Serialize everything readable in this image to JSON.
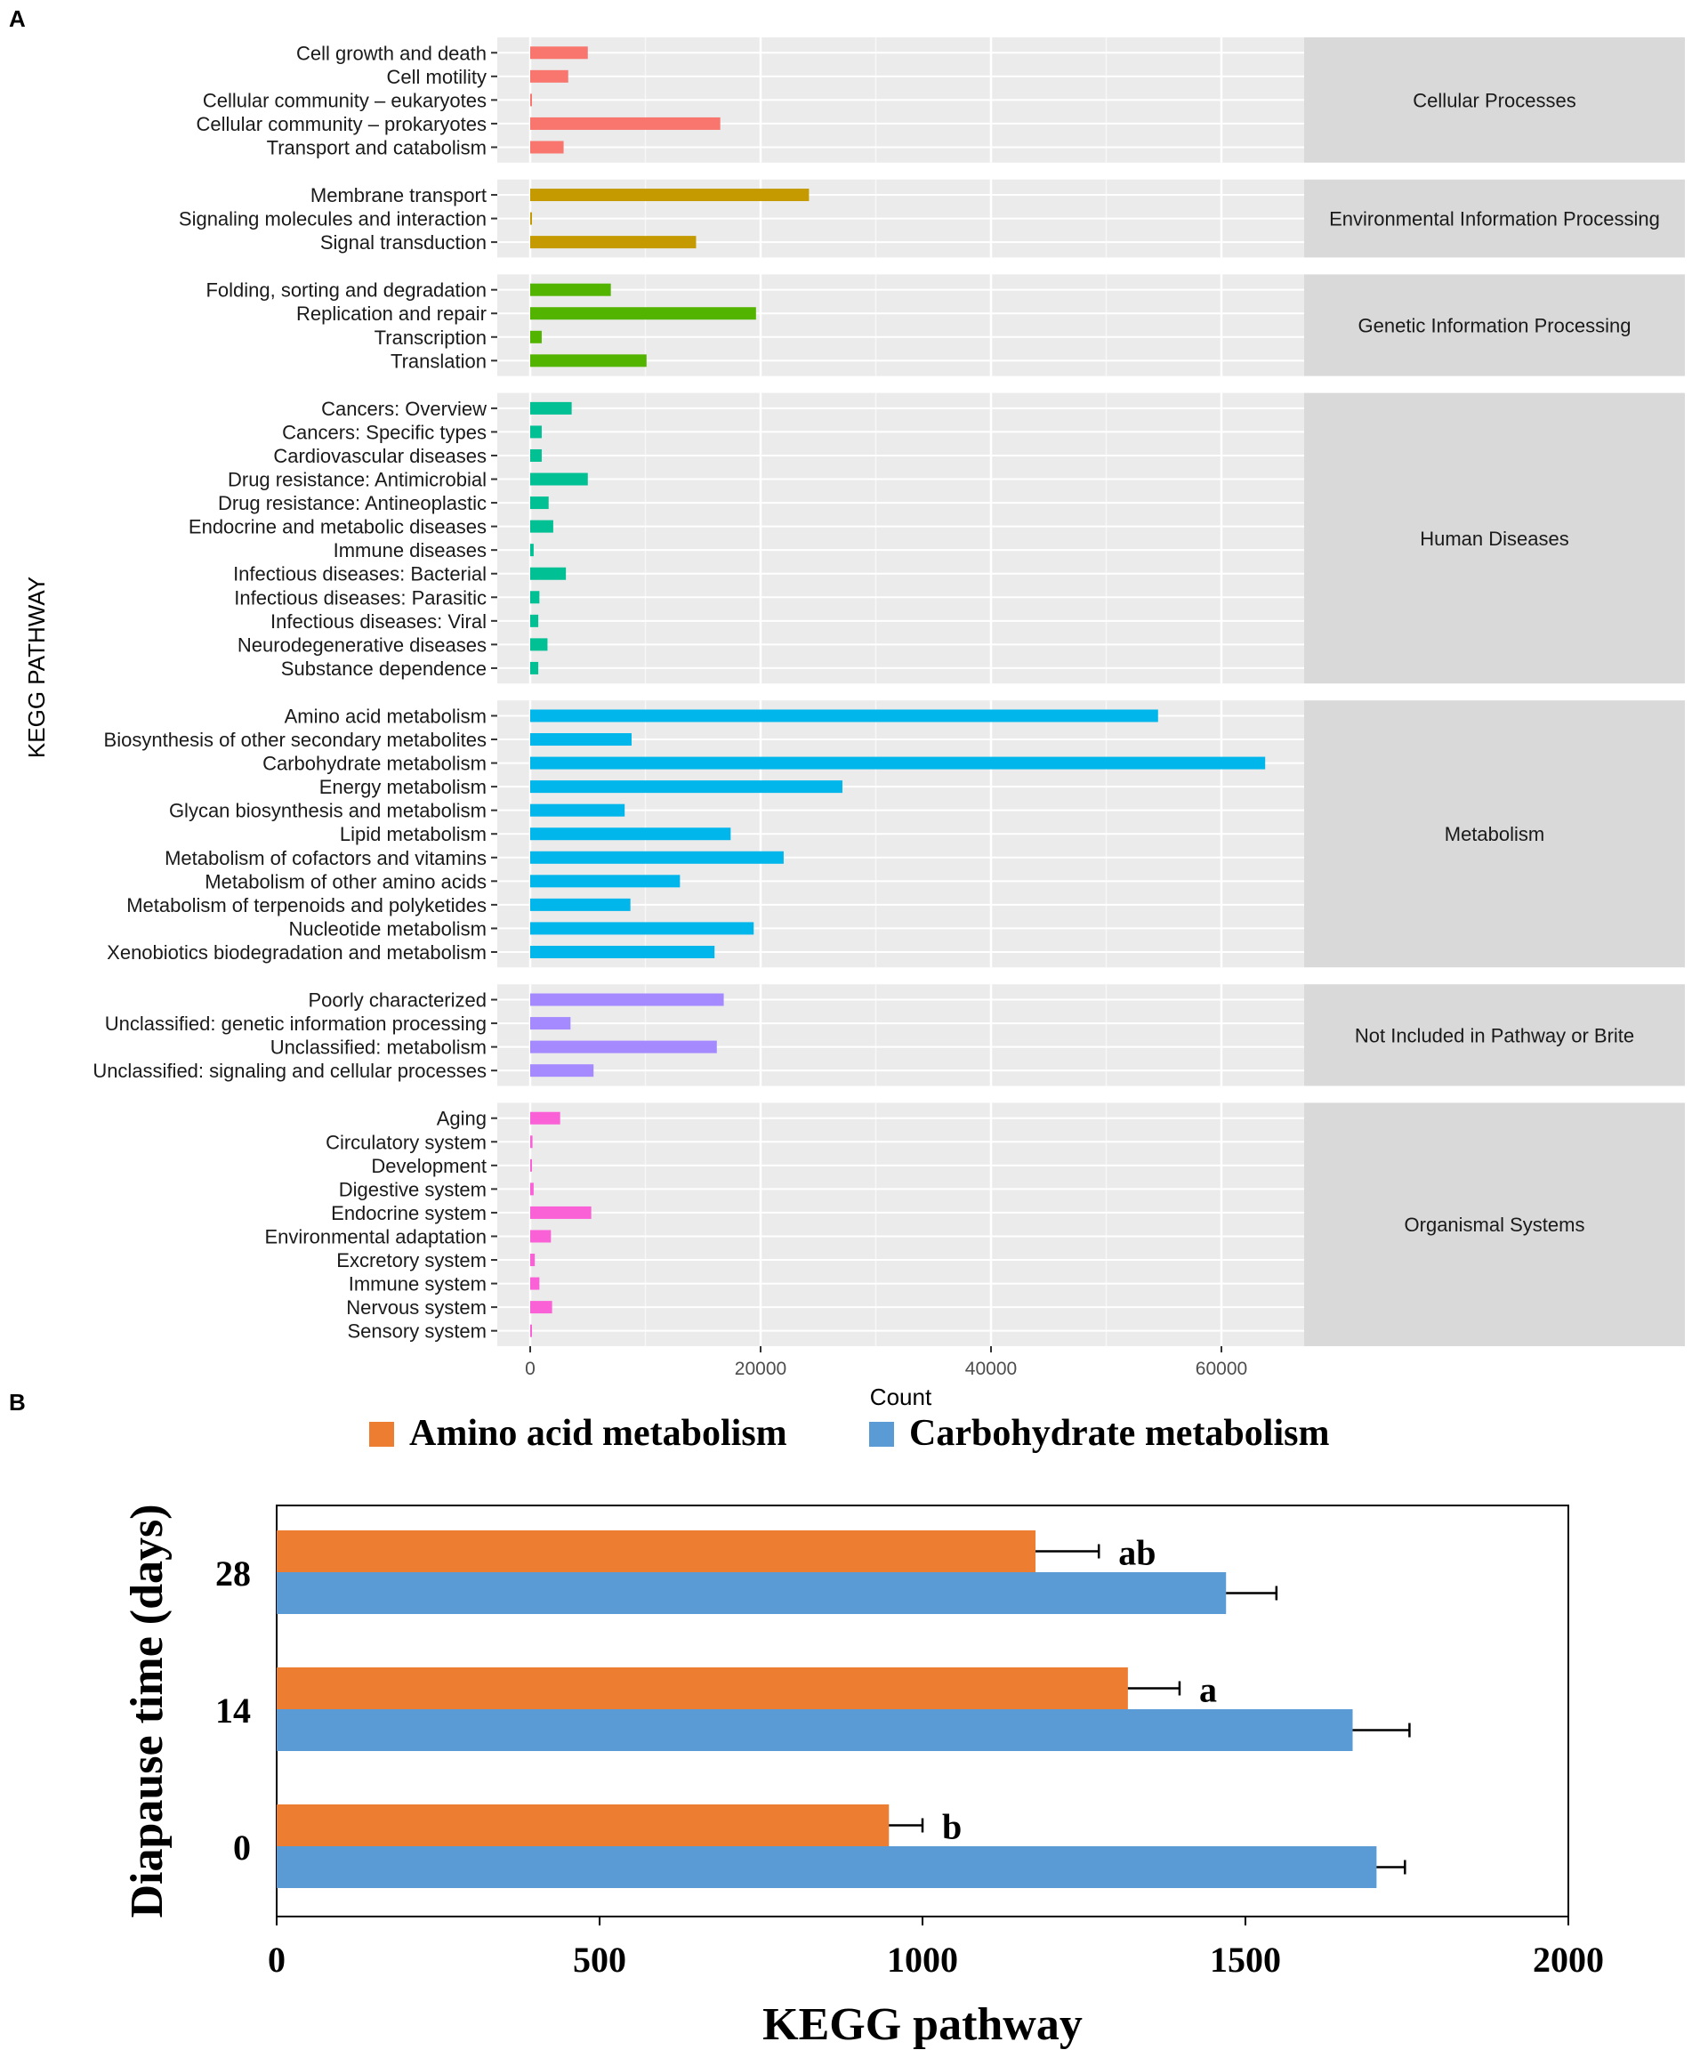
{
  "chart_data": [
    {
      "type": "bar",
      "panel_label": "A",
      "orientation": "horizontal",
      "ylabel": "KEGG PATHWAY",
      "xlabel": "Count",
      "xticks": [
        0,
        20000,
        40000,
        60000
      ],
      "xlim": [
        -3000,
        67000
      ],
      "groups": [
        {
          "name": "Cellular Processes",
          "color": "#F8766D",
          "categories": [
            "Cell growth and death",
            "Cell motility",
            "Cellular community – eukaryotes",
            "Cellular community – prokaryotes",
            "Transport and catabolism"
          ],
          "values": [
            5000,
            3300,
            150,
            16500,
            2900
          ]
        },
        {
          "name": "Environmental Information Processing",
          "color": "#C49A00",
          "categories": [
            "Membrane transport",
            "Signaling molecules and interaction",
            "Signal transduction"
          ],
          "values": [
            24200,
            150,
            14400
          ]
        },
        {
          "name": "Genetic Information Processing",
          "color": "#53B400",
          "categories": [
            "Folding, sorting and degradation",
            "Replication and repair",
            "Transcription",
            "Translation"
          ],
          "values": [
            7000,
            19600,
            1000,
            10100
          ]
        },
        {
          "name": "Human Diseases",
          "color": "#00C094",
          "categories": [
            "Cancers: Overview",
            "Cancers: Specific types",
            "Cardiovascular diseases",
            "Drug resistance: Antimicrobial",
            "Drug resistance: Antineoplastic",
            "Endocrine and metabolic diseases",
            "Immune diseases",
            "Infectious diseases: Bacterial",
            "Infectious diseases: Parasitic",
            "Infectious diseases: Viral",
            "Neurodegenerative diseases",
            "Substance dependence"
          ],
          "values": [
            3600,
            1000,
            1000,
            5000,
            1600,
            2000,
            300,
            3100,
            800,
            700,
            1500,
            700
          ]
        },
        {
          "name": "Metabolism",
          "color": "#00B6EB",
          "categories": [
            "Amino acid metabolism",
            "Biosynthesis of other secondary metabolites",
            "Carbohydrate metabolism",
            "Energy metabolism",
            "Glycan biosynthesis and metabolism",
            "Lipid metabolism",
            "Metabolism of cofactors and vitamins",
            "Metabolism of other amino acids",
            "Metabolism of terpenoids and polyketides",
            "Nucleotide metabolism",
            "Xenobiotics biodegradation and metabolism"
          ],
          "values": [
            54500,
            8800,
            63800,
            27100,
            8200,
            17400,
            22000,
            13000,
            8700,
            19400,
            16000
          ]
        },
        {
          "name": "Not Included in Pathway or Brite",
          "color": "#A58AFF",
          "categories": [
            "Poorly characterized",
            "Unclassified: genetic information processing",
            "Unclassified: metabolism",
            "Unclassified: signaling and cellular processes"
          ],
          "values": [
            16800,
            3500,
            16200,
            5500
          ]
        },
        {
          "name": "Organismal Systems",
          "color": "#FB61D7",
          "categories": [
            "Aging",
            "Circulatory system",
            "Development",
            "Digestive system",
            "Endocrine system",
            "Environmental adaptation",
            "Excretory system",
            "Immune system",
            "Nervous system",
            "Sensory system"
          ],
          "values": [
            2600,
            200,
            60,
            300,
            5300,
            1800,
            400,
            800,
            1900,
            60
          ]
        }
      ]
    },
    {
      "type": "bar",
      "panel_label": "B",
      "orientation": "horizontal",
      "xlabel": "KEGG pathway",
      "ylabel": "Diapause time (days)",
      "xlim": [
        0,
        2000
      ],
      "xticks": [
        0,
        500,
        1000,
        1500,
        2000
      ],
      "categories": [
        "28",
        "14",
        "0"
      ],
      "series": [
        {
          "name": "Amino acid metabolism",
          "color": "#ED7D31",
          "values": [
            1175,
            1318,
            948
          ],
          "errors": [
            98,
            80,
            52
          ]
        },
        {
          "name": "Carbohydrate metabolism",
          "color": "#5B9BD5",
          "values": [
            1470,
            1666,
            1703
          ],
          "errors": [
            78,
            88,
            44
          ]
        }
      ],
      "annotations": [
        "ab",
        "a",
        "b"
      ]
    }
  ]
}
